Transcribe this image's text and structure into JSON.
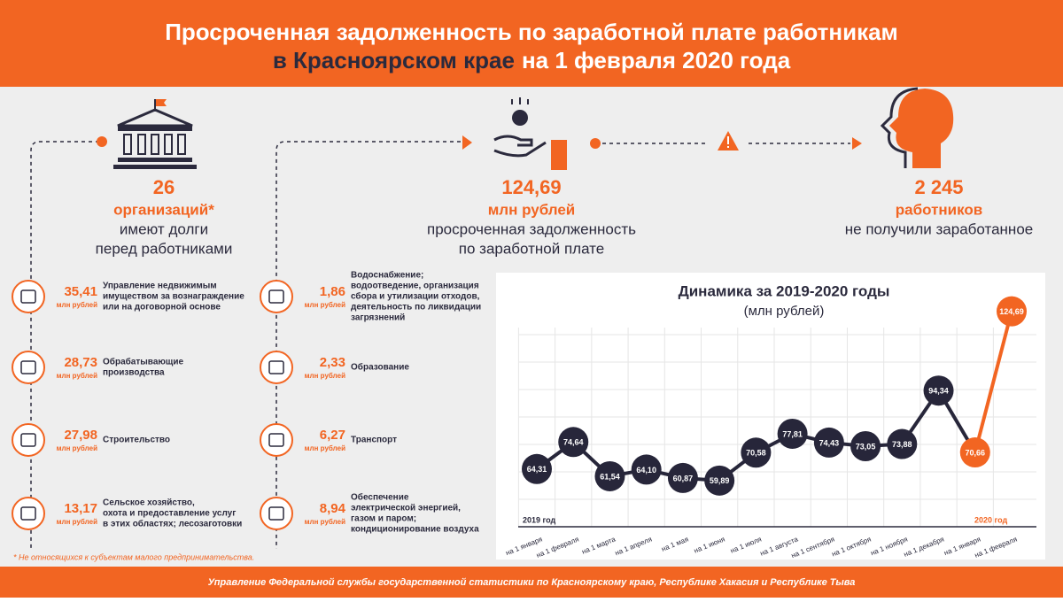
{
  "header": {
    "line1": "Просроченная задолженность по заработной плате работникам",
    "region": "в Красноярском крае",
    "date": "на 1 февраля 2020 года"
  },
  "stats": [
    {
      "number": "26",
      "unit": "организаций*",
      "text": [
        "имеют долги",
        "перед работниками"
      ]
    },
    {
      "number": "124,69",
      "unit": "млн рублей",
      "text": [
        "просроченная задолженность",
        "по заработной плате"
      ]
    },
    {
      "number": "2 245",
      "unit": "работников",
      "text": [
        "не получили заработанное"
      ]
    }
  ],
  "industries": [
    {
      "value": "35,41",
      "unit": "млн рублей",
      "text": [
        "Управление недвижимым",
        "имуществом за вознаграждение",
        "или на договорной основе"
      ]
    },
    {
      "value": "28,73",
      "unit": "млн рублей",
      "text": [
        "Обрабатывающие",
        "производства"
      ]
    },
    {
      "value": "27,98",
      "unit": "млн рублей",
      "text": [
        "Строительство"
      ]
    },
    {
      "value": "13,17",
      "unit": "млн рублей",
      "text": [
        "Сельское хозяйство,",
        "охота и предоставление услуг",
        "в этих областях; лесозаготовки"
      ]
    },
    {
      "value": "1,86",
      "unit": "млн рублей",
      "text": [
        "Водоснабжение;",
        "водоотведение, организация",
        "сбора и утилизации отходов,",
        "деятельность по ликвидации",
        "загрязнений"
      ]
    },
    {
      "value": "2,33",
      "unit": "млн рублей",
      "text": [
        "Образование"
      ]
    },
    {
      "value": "6,27",
      "unit": "млн рублей",
      "text": [
        "Транспорт"
      ]
    },
    {
      "value": "8,94",
      "unit": "млн рублей",
      "text": [
        "Обеспечение",
        "электрической энергией,",
        "газом и паром;",
        "кондиционирование воздуха"
      ]
    }
  ],
  "footnote": "* Не относящихся к субъектам малого предпринимательства.",
  "footer": "Управление Федеральной службы государственной статистики по Красноярскому краю, Республике Хакасия и Республике Тыва",
  "chart_data": {
    "type": "line",
    "title": "Динамика за 2019-2020 годы",
    "subtitle": "(млн рублей)",
    "categories": [
      "на 1 января",
      "на 1 февраля",
      "на 1 марта",
      "на 1 апреля",
      "на 1 мая",
      "на 1 июня",
      "на 1 июля",
      "на 1 августа",
      "на 1 сентября",
      "на 1 октября",
      "на 1 ноября",
      "на 1 декабря",
      "на 1 января",
      "на 1 февраля"
    ],
    "year_labels": [
      "2019 год",
      "2020 год"
    ],
    "values": [
      64.31,
      74.64,
      61.54,
      64.1,
      60.87,
      59.89,
      70.58,
      77.81,
      74.43,
      73.05,
      73.88,
      94.34,
      70.66,
      124.69
    ],
    "value_labels": [
      "64,31",
      "74,64",
      "61,54",
      "64,10",
      "60,87",
      "59,89",
      "70,58",
      "77,81",
      "74,43",
      "73,05",
      "73,88",
      "94,34",
      "70,66",
      "124,69"
    ],
    "colors": [
      "#27263a",
      "#27263a",
      "#27263a",
      "#27263a",
      "#27263a",
      "#27263a",
      "#27263a",
      "#27263a",
      "#27263a",
      "#27263a",
      "#27263a",
      "#27263a",
      "#f26522",
      "#f26522"
    ],
    "ylim": [
      50,
      130
    ],
    "grid": true
  }
}
